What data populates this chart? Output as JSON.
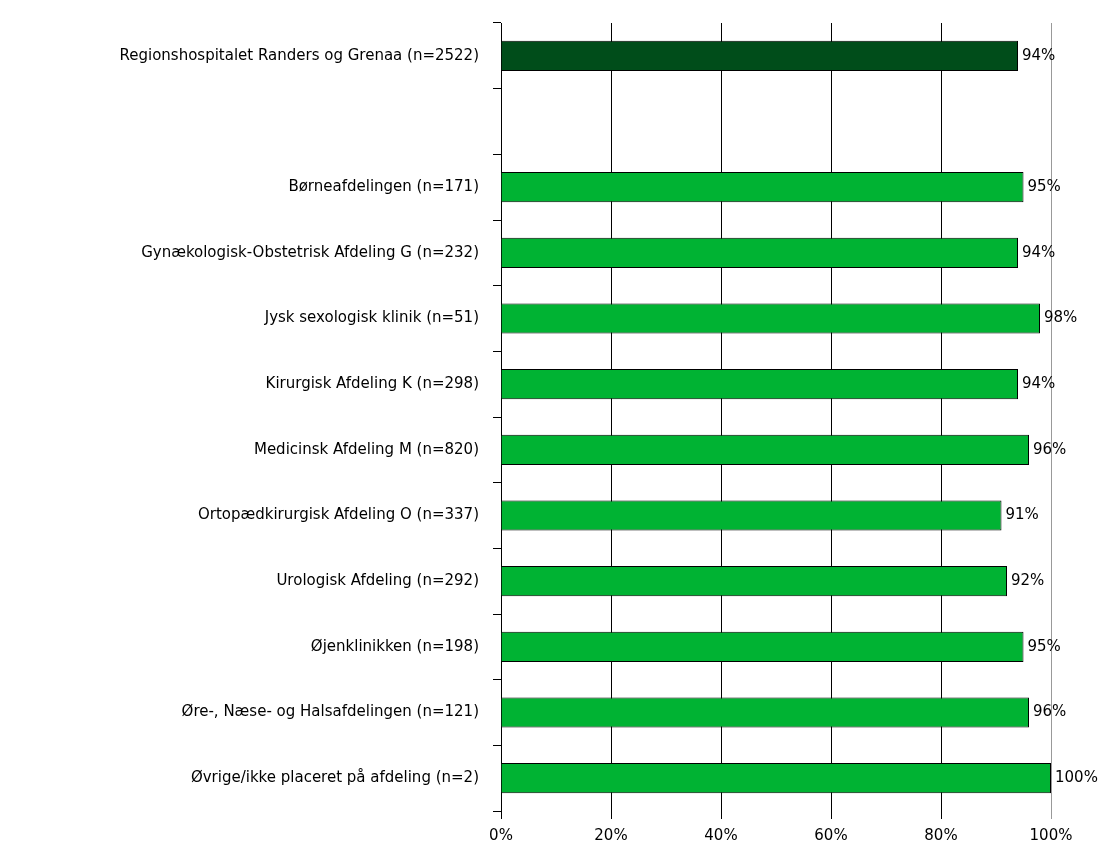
{
  "chart_data": {
    "type": "bar",
    "orientation": "horizontal",
    "categories": [
      "Regionshospitalet Randers og Grenaa (n=2522)",
      null,
      "Børneafdelingen (n=171)",
      "Gynækologisk-Obstetrisk Afdeling G (n=232)",
      "Jysk sexologisk klinik (n=51)",
      "Kirurgisk Afdeling K (n=298)",
      "Medicinsk Afdeling M (n=820)",
      "Ortopædkirurgisk Afdeling O (n=337)",
      "Urologisk Afdeling (n=292)",
      "Øjenklinikken (n=198)",
      "Øre-, Næse- og Halsafdelingen (n=121)",
      "Øvrige/ikke placeret på afdeling (n=2)"
    ],
    "values": [
      94,
      null,
      95,
      94,
      98,
      94,
      96,
      91,
      92,
      95,
      96,
      100
    ],
    "value_labels": [
      "94%",
      null,
      "95%",
      "94%",
      "98%",
      "94%",
      "96%",
      "91%",
      "92%",
      "95%",
      "96%",
      "100%"
    ],
    "colors": [
      "#004d1a",
      "#00b333",
      "#00b333",
      "#00b333",
      "#00b333",
      "#00b333",
      "#00b333",
      "#00b333",
      "#00b333",
      "#00b333",
      "#00b333",
      "#00b333"
    ],
    "xlim": [
      0,
      100
    ],
    "xticks": [
      {
        "value": 0,
        "label": "0%"
      },
      {
        "value": 20,
        "label": "20%"
      },
      {
        "value": 40,
        "label": "40%"
      },
      {
        "value": 60,
        "label": "60%"
      },
      {
        "value": 80,
        "label": "80%"
      },
      {
        "value": 100,
        "label": "100%"
      }
    ],
    "grid": "x",
    "legend": false
  }
}
